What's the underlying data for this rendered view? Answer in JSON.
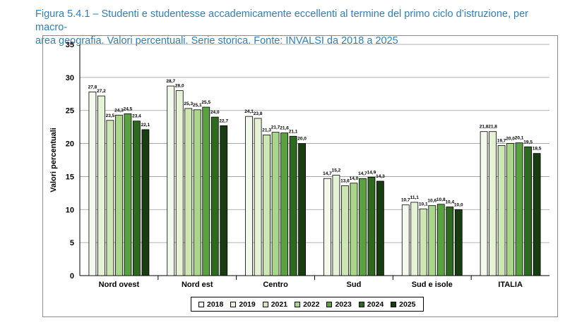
{
  "caption": {
    "line1": "Figura 5.4.1 – Studenti e studentesse accademicamente eccellenti al termine del primo ciclo d’istruzione, per macro-",
    "line2": "area geografia. Valori percentuali. Serie storica. Fonte: INVALSI da 2018 a 2025"
  },
  "chart_data": {
    "type": "bar",
    "title": "Figura 5.4.1 – Studenti e studentesse accademicamente eccellenti al termine del primo ciclo d’istruzione, per macro-area geografia. Valori percentuali. Serie storica. Fonte: INVALSI da 2018 a 2025",
    "xlabel": "",
    "ylabel": "Valori percentuali",
    "ylim": [
      0,
      35
    ],
    "yticks": [
      0,
      5,
      10,
      15,
      20,
      25,
      30,
      35
    ],
    "grid": true,
    "legend_position": "bottom",
    "categories": [
      "Nord ovest",
      "Nord est",
      "Centro",
      "Sud",
      "Sud e isole",
      "ITALIA"
    ],
    "series": [
      {
        "name": "2018",
        "color": "#f4f9ee",
        "values": [
          27.8,
          28.7,
          24.1,
          14.7,
          10.7,
          21.8
        ],
        "labels": [
          "27,8",
          "28,7",
          "24,1",
          "14,7",
          "10,7",
          "21,8"
        ]
      },
      {
        "name": "2019",
        "color": "#e6f2d6",
        "values": [
          27.2,
          28.0,
          23.8,
          15.2,
          11.1,
          21.8
        ],
        "labels": [
          "27,2",
          "28,0",
          "23,8",
          "15,2",
          "11,1",
          "21,8"
        ]
      },
      {
        "name": "2021",
        "color": "#cde6b3",
        "values": [
          23.5,
          25.3,
          21.3,
          13.6,
          10.1,
          19.7
        ],
        "labels": [
          "23,5",
          "25,3",
          "21,3",
          "13,6",
          "10,1",
          "19,7"
        ]
      },
      {
        "name": "2022",
        "color": "#a9d68a",
        "values": [
          24.3,
          25.1,
          21.7,
          14.0,
          10.6,
          20.0
        ],
        "labels": [
          "24,3",
          "25,1",
          "21,7",
          "14,0",
          "10,6",
          "20,0"
        ]
      },
      {
        "name": "2023",
        "color": "#5aa23f",
        "values": [
          24.5,
          25.5,
          21.6,
          14.7,
          10.8,
          20.1
        ],
        "labels": [
          "24,5",
          "25,5",
          "21,6",
          "14,7",
          "10,8",
          "20,1"
        ]
      },
      {
        "name": "2024",
        "color": "#2d6a1f",
        "values": [
          23.4,
          24.0,
          21.1,
          14.9,
          10.4,
          19.5
        ],
        "labels": [
          "23,4",
          "24,0",
          "21,1",
          "14,9",
          "10,4",
          "19,5"
        ]
      },
      {
        "name": "2025",
        "color": "#173d10",
        "values": [
          22.1,
          22.7,
          20.0,
          14.3,
          10.0,
          18.5
        ],
        "labels": [
          "22,1",
          "22,7",
          "20,0",
          "14,3",
          "10,0",
          "18,5"
        ]
      }
    ]
  }
}
